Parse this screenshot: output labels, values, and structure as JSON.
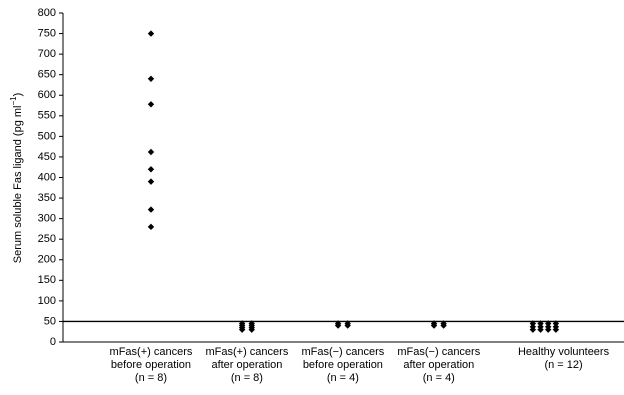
{
  "chart_data": {
    "type": "scatter",
    "ylabel": "Serum soluble Fas ligand (pg ml",
    "ylabel_sup": "−1",
    "ylabel_end": ")",
    "ylim": [
      0,
      800
    ],
    "yticks": [
      0,
      50,
      100,
      150,
      200,
      250,
      300,
      350,
      400,
      450,
      500,
      550,
      600,
      650,
      700,
      750,
      800
    ],
    "xlim": [
      0.083,
      5.93
    ],
    "xticks": [
      {
        "value": 1,
        "label": "mFas(+) cancers\nbefore operation\n(n = 8)"
      },
      {
        "value": 2,
        "label": "mFas(+) cancers\nafter operation\n(n = 8)"
      },
      {
        "value": 3,
        "label": "mFas(−) cancers\nbefore operation\n(n = 4)"
      },
      {
        "value": 4,
        "label": "mFas(−) cancers\nafter operation\n(n = 4)"
      },
      {
        "value": 5.3,
        "label": "Healthy volunteers\n(n = 12)"
      }
    ],
    "hline": 50,
    "color": "#000000",
    "x": [
      1,
      1,
      1,
      1,
      1,
      1,
      1,
      1,
      1.95,
      1.95,
      1.95,
      1.95,
      2.05,
      2.05,
      2.05,
      2.05,
      2.95,
      2.95,
      3.05,
      3.05,
      3.95,
      3.95,
      4.05,
      4.05,
      4.98,
      4.98,
      4.98,
      5.06,
      5.06,
      5.06,
      5.14,
      5.14,
      5.14,
      5.22,
      5.22,
      5.22
    ],
    "values": [
      750,
      640,
      578,
      462,
      420,
      390,
      322,
      280,
      45,
      40,
      35,
      30,
      45,
      40,
      35,
      30,
      45,
      40,
      45,
      40,
      45,
      40,
      45,
      40,
      45,
      37,
      30,
      45,
      37,
      30,
      45,
      37,
      30,
      45,
      37,
      30
    ]
  }
}
